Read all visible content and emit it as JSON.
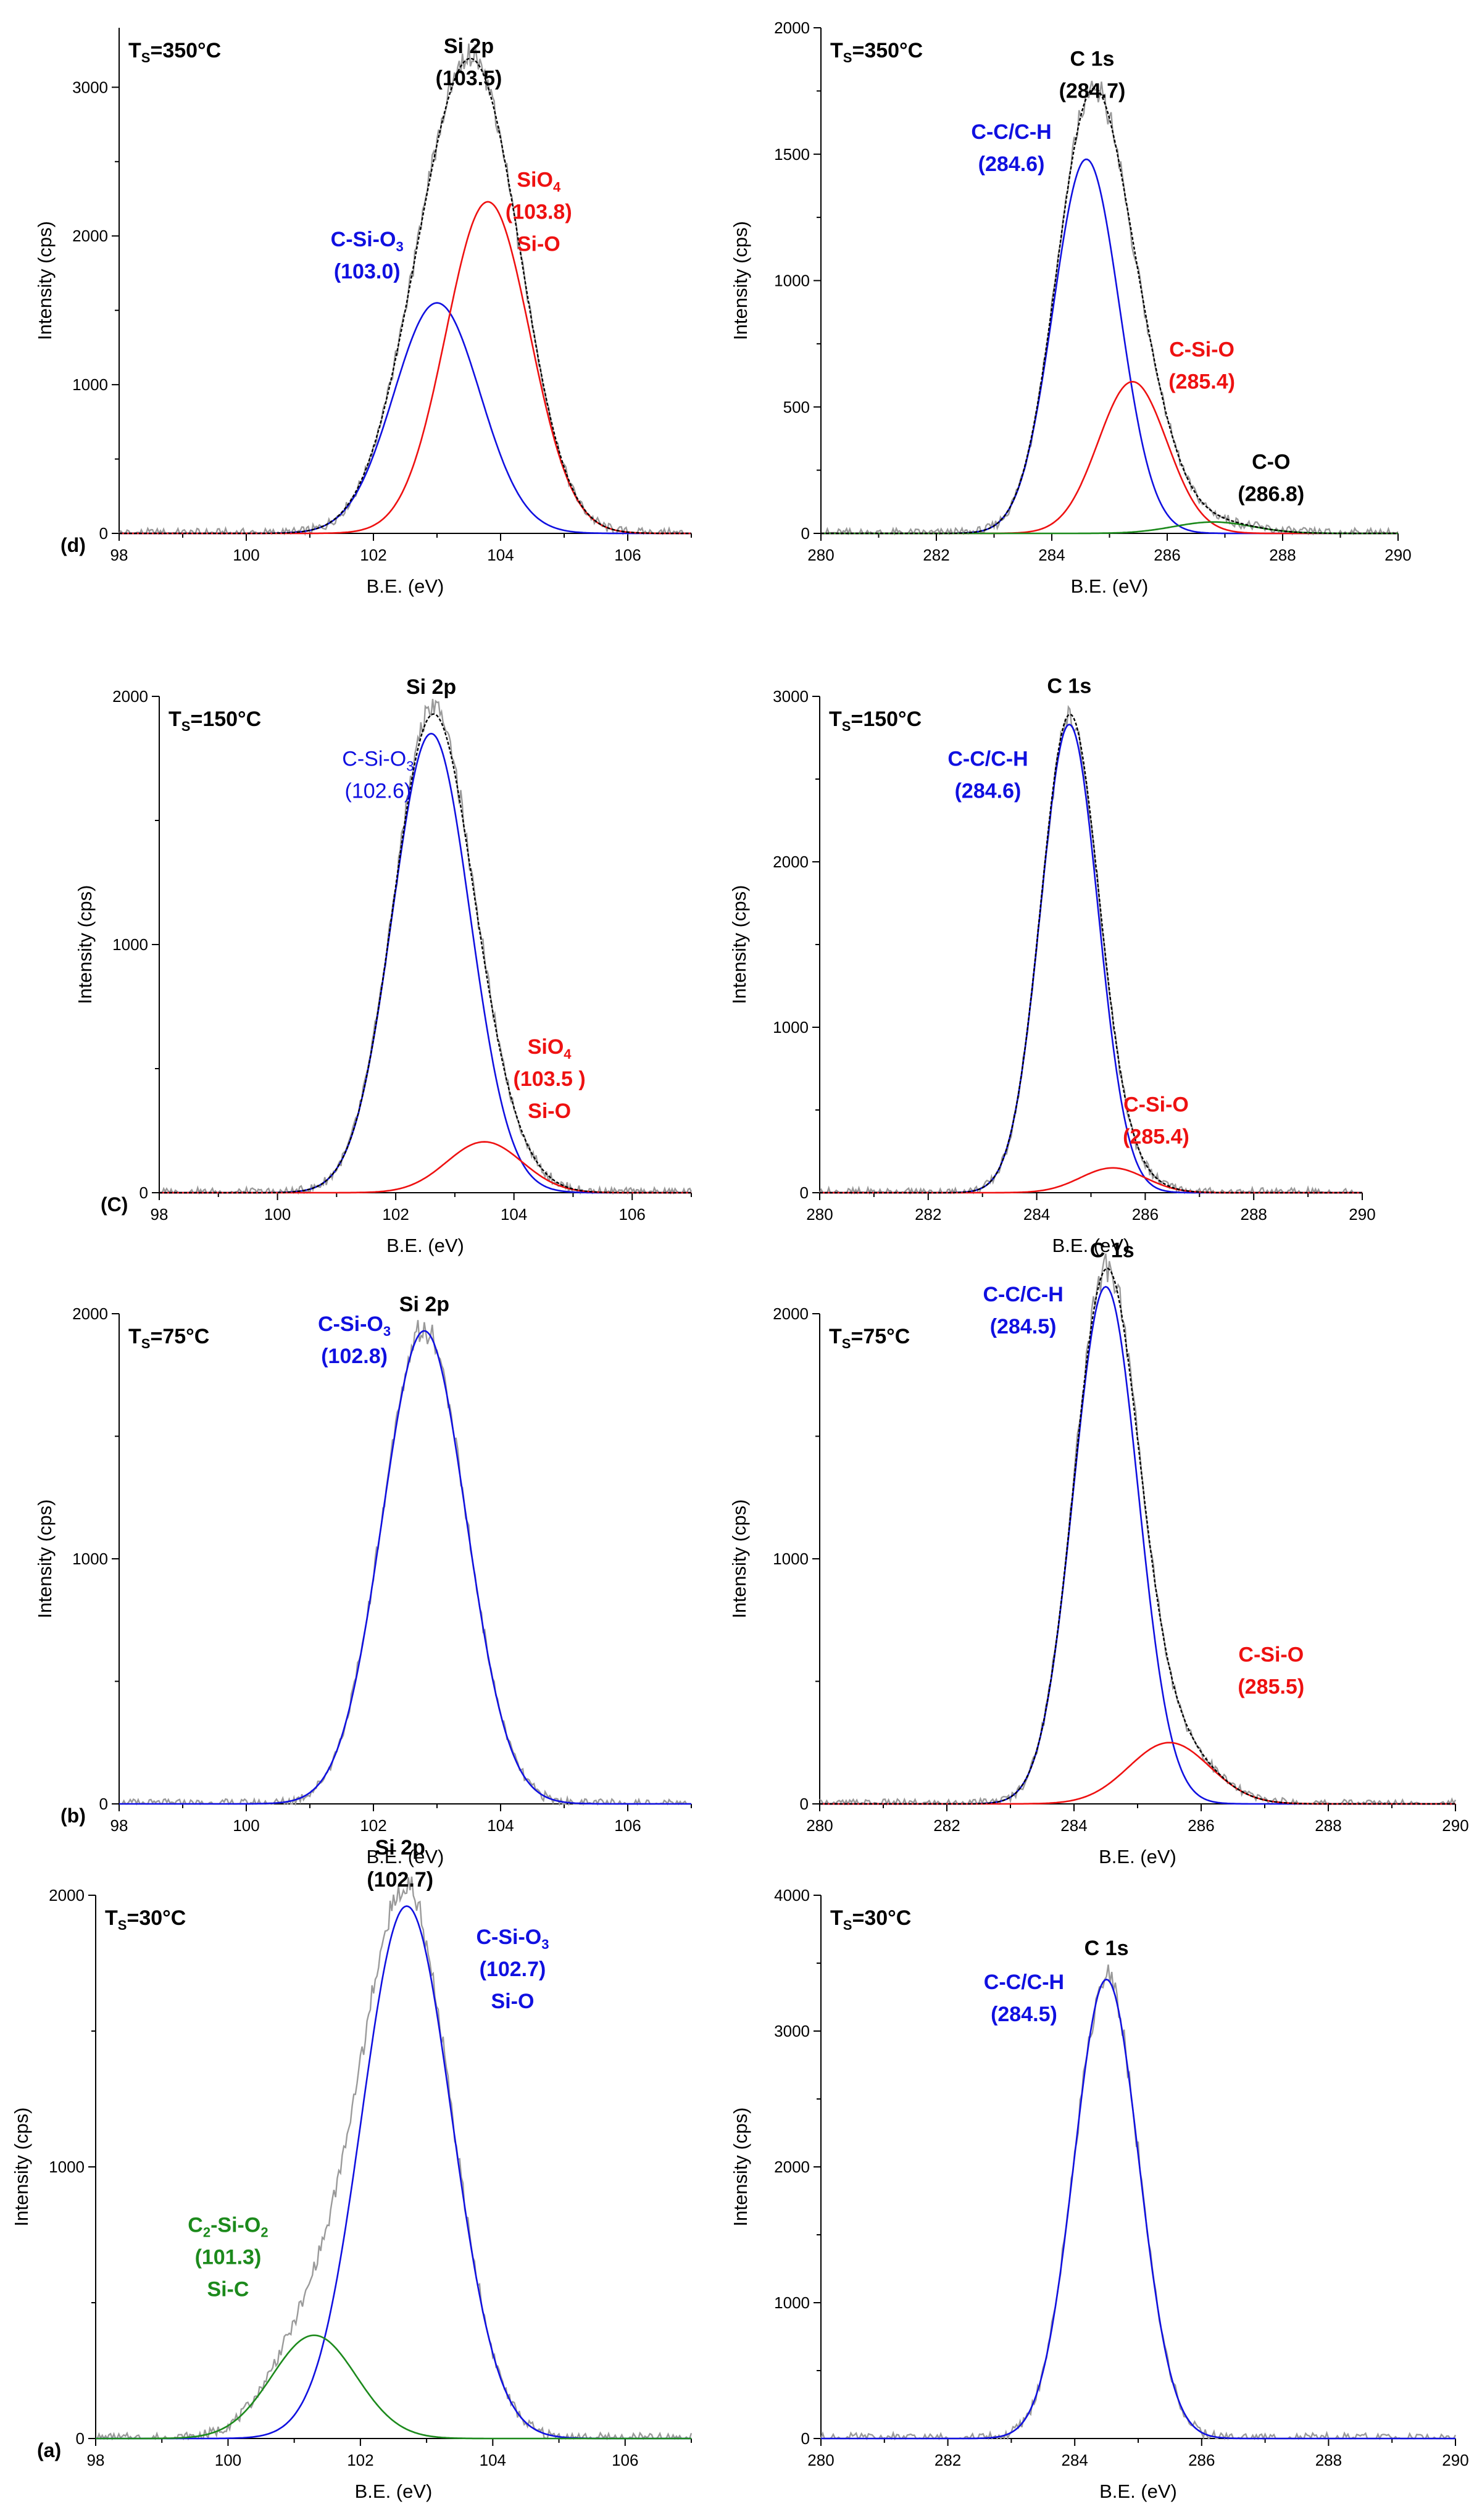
{
  "figure": {
    "colors": {
      "raw": "#9a9a9a",
      "envelope": "#000000",
      "blue": "#1010e0",
      "red": "#ee1111",
      "green": "#1c8a1c",
      "black": "#000000"
    }
  },
  "chart_data": [
    {
      "id": "d-si2p",
      "type": "line",
      "panel_label": "(d)",
      "temperature": "T",
      "temperature_sub": "S",
      "temperature_rest": "=350°C",
      "xlabel": "B.E. (eV)",
      "ylabel": "Intensity (cps)",
      "xlim": [
        98,
        107
      ],
      "ylim": [
        0,
        3400
      ],
      "xticks": [
        98,
        100,
        102,
        104,
        106
      ],
      "yticks": [
        0,
        1000,
        2000,
        3000
      ],
      "components": [
        {
          "name": "C-Si-O3",
          "center": 103.0,
          "amplitude": 1550,
          "fwhm": 1.6,
          "color": "blue"
        },
        {
          "name": "SiO4 / Si-O",
          "center": 103.8,
          "amplitude": 2230,
          "fwhm": 1.55,
          "color": "red"
        }
      ],
      "envelope": true,
      "raw_peak": 3200,
      "annotations": [
        {
          "lines": [
            "Si 2p",
            "(103.5)"
          ],
          "color": "black",
          "x": 103.5,
          "y": 3230
        },
        {
          "lines": [
            "C-Si-O|3",
            "(103.0)"
          ],
          "color": "blue",
          "x": 101.9,
          "y": 1930
        },
        {
          "lines": [
            "SiO|4",
            "(103.8)",
            "Si-O"
          ],
          "color": "red",
          "x": 104.6,
          "y": 2330
        }
      ]
    },
    {
      "id": "d-c1s",
      "type": "line",
      "panel_label": "",
      "temperature": "T",
      "temperature_sub": "S",
      "temperature_rest": "=350°C",
      "xlabel": "B.E. (eV)",
      "ylabel": "Intensity (cps)",
      "xlim": [
        280,
        290
      ],
      "ylim": [
        0,
        2000
      ],
      "xticks": [
        280,
        282,
        284,
        286,
        288,
        290
      ],
      "yticks": [
        0,
        500,
        1000,
        1500,
        2000
      ],
      "components": [
        {
          "name": "C-C/C-H",
          "center": 284.6,
          "amplitude": 1480,
          "fwhm": 1.35,
          "color": "blue"
        },
        {
          "name": "C-Si-O",
          "center": 285.4,
          "amplitude": 600,
          "fwhm": 1.4,
          "color": "red"
        },
        {
          "name": "C-O",
          "center": 286.8,
          "amplitude": 45,
          "fwhm": 1.6,
          "color": "green"
        }
      ],
      "envelope": true,
      "raw_peak": 1760,
      "annotations": [
        {
          "lines": [
            "C 1s",
            "(284.7)"
          ],
          "color": "black",
          "x": 284.7,
          "y": 1850
        },
        {
          "lines": [
            "C-C/C-H",
            "(284.6)"
          ],
          "color": "blue",
          "x": 283.3,
          "y": 1560
        },
        {
          "lines": [
            "C-Si-O",
            "(285.4)"
          ],
          "color": "red",
          "x": 286.6,
          "y": 700
        },
        {
          "lines": [
            "C-O",
            "(286.8)"
          ],
          "color": "black",
          "x": 287.8,
          "y": 255
        }
      ]
    },
    {
      "id": "c-si2p",
      "type": "line",
      "panel_label": "(C)",
      "temperature": "T",
      "temperature_sub": "S",
      "temperature_rest": "=150°C",
      "xlabel": "B.E. (eV)",
      "ylabel": "Intensity (cps)",
      "xlim": [
        98,
        107
      ],
      "ylim": [
        0,
        2000
      ],
      "xticks": [
        98,
        100,
        102,
        104,
        106
      ],
      "yticks": [
        0,
        1000,
        2000
      ],
      "components": [
        {
          "name": "C-Si-O3",
          "center": 102.6,
          "amplitude": 1850,
          "fwhm": 1.55,
          "color": "blue"
        },
        {
          "name": "SiO4 / Si-O",
          "center": 103.5,
          "amplitude": 205,
          "fwhm": 1.5,
          "color": "red"
        }
      ],
      "envelope": true,
      "raw_peak": 1950,
      "annotations": [
        {
          "lines": [
            "Si 2p"
          ],
          "color": "black",
          "x": 102.6,
          "y": 2010
        },
        {
          "lines": [
            "C-Si-O|3",
            "(102.6)"
          ],
          "color": "blue",
          "plain": true,
          "x": 101.7,
          "y": 1720
        },
        {
          "lines": [
            "SiO|4",
            "(103.5 )",
            "Si-O"
          ],
          "color": "red",
          "x": 104.6,
          "y": 560
        }
      ]
    },
    {
      "id": "c-c1s",
      "type": "line",
      "panel_label": "",
      "temperature": "T",
      "temperature_sub": "S",
      "temperature_rest": "=150°C",
      "xlabel": "B.E. (eV)",
      "ylabel": "Intensity (cps)",
      "xlim": [
        280,
        290
      ],
      "ylim": [
        0,
        3000
      ],
      "xticks": [
        280,
        282,
        284,
        286,
        288,
        290
      ],
      "yticks": [
        0,
        1000,
        2000,
        3000
      ],
      "components": [
        {
          "name": "C-C/C-H",
          "center": 284.6,
          "amplitude": 2830,
          "fwhm": 1.25,
          "color": "blue"
        },
        {
          "name": "C-Si-O",
          "center": 285.4,
          "amplitude": 150,
          "fwhm": 1.4,
          "color": "red"
        }
      ],
      "envelope": true,
      "raw_peak": 2870,
      "annotations": [
        {
          "lines": [
            "C 1s"
          ],
          "color": "black",
          "x": 284.6,
          "y": 3020
        },
        {
          "lines": [
            "C-C/C-H",
            "(284.6)"
          ],
          "color": "blue",
          "x": 283.1,
          "y": 2580
        },
        {
          "lines": [
            "C-Si-O",
            "(285.4)"
          ],
          "color": "red",
          "x": 286.2,
          "y": 490
        }
      ]
    },
    {
      "id": "b-si2p",
      "type": "line",
      "panel_label": "(b)",
      "temperature": "T",
      "temperature_sub": "S",
      "temperature_rest": "=75°C",
      "xlabel": "B.E. (eV)",
      "ylabel": "Intensity (cps)",
      "xlim": [
        98,
        107
      ],
      "ylim": [
        0,
        2000
      ],
      "xticks": [
        98,
        100,
        102,
        104,
        106
      ],
      "yticks": [
        0,
        1000,
        2000
      ],
      "components": [
        {
          "name": "C-Si-O3",
          "center": 102.8,
          "amplitude": 1930,
          "fwhm": 1.55,
          "color": "blue"
        }
      ],
      "envelope": false,
      "raw_peak": 1950,
      "annotations": [
        {
          "lines": [
            "Si 2p"
          ],
          "color": "black",
          "x": 102.8,
          "y": 2010
        },
        {
          "lines": [
            "C-Si-O|3",
            "(102.8)"
          ],
          "color": "blue",
          "x": 101.7,
          "y": 1930
        }
      ]
    },
    {
      "id": "b-c1s",
      "type": "line",
      "panel_label": "",
      "temperature": "T",
      "temperature_sub": "S",
      "temperature_rest": "=75°C",
      "xlabel": "B.E. (eV)",
      "ylabel": "Intensity (cps)",
      "xlim": [
        280,
        290
      ],
      "ylim": [
        0,
        2000
      ],
      "xticks": [
        280,
        282,
        284,
        286,
        288,
        290
      ],
      "yticks": [
        0,
        1000,
        2000
      ],
      "components": [
        {
          "name": "C-C/C-H",
          "center": 284.5,
          "amplitude": 2110,
          "fwhm": 1.2,
          "color": "blue"
        },
        {
          "name": "C-Si-O",
          "center": 285.5,
          "amplitude": 250,
          "fwhm": 1.5,
          "color": "red"
        }
      ],
      "envelope": true,
      "raw_peak": 2200,
      "annotations": [
        {
          "lines": [
            "C 1s"
          ],
          "color": "black",
          "x": 284.6,
          "y": 2230
        },
        {
          "lines": [
            "C-C/C-H",
            "(284.5)"
          ],
          "color": "blue",
          "x": 283.2,
          "y": 2050
        },
        {
          "lines": [
            "C-Si-O",
            "(285.5)"
          ],
          "color": "red",
          "x": 287.1,
          "y": 580
        }
      ]
    },
    {
      "id": "a-si2p",
      "type": "line",
      "panel_label": "(a)",
      "temperature": "T",
      "temperature_sub": "S",
      "temperature_rest": "=30°C",
      "xlabel": "B.E. (eV)",
      "ylabel": "Intensity (cps)",
      "xlim": [
        98,
        107
      ],
      "ylim": [
        0,
        2000
      ],
      "xticks": [
        98,
        100,
        102,
        104,
        106
      ],
      "yticks": [
        0,
        1000,
        2000
      ],
      "components": [
        {
          "name": "C-Si-O3 / Si-O",
          "center": 102.7,
          "amplitude": 1960,
          "fwhm": 1.6,
          "color": "blue"
        },
        {
          "name": "C2-Si-O2 / Si-C",
          "center": 101.3,
          "amplitude": 380,
          "fwhm": 1.5,
          "color": "green"
        }
      ],
      "envelope": false,
      "raw_peak": 2030,
      "annotations": [
        {
          "lines": [
            "Si 2p",
            "(102.7)"
          ],
          "color": "black",
          "x": 102.6,
          "y": 2150
        },
        {
          "lines": [
            "C-Si-O|3",
            "(102.7)",
            "Si-O"
          ],
          "color": "blue",
          "x": 104.3,
          "y": 1820
        },
        {
          "lines": [
            "C|2|-Si-O|2",
            "(101.3)",
            "Si-C"
          ],
          "color": "green",
          "x": 100.0,
          "y": 760
        }
      ]
    },
    {
      "id": "a-c1s",
      "type": "line",
      "panel_label": "",
      "temperature": "T",
      "temperature_sub": "S",
      "temperature_rest": "=30°C",
      "xlabel": "B.E. (eV)",
      "ylabel": "Intensity (cps)",
      "xlim": [
        280,
        290
      ],
      "ylim": [
        0,
        4000
      ],
      "xticks": [
        280,
        282,
        284,
        286,
        288,
        290
      ],
      "yticks": [
        0,
        1000,
        2000,
        3000,
        4000
      ],
      "components": [
        {
          "name": "C-C/C-H",
          "center": 284.5,
          "amplitude": 3380,
          "fwhm": 1.2,
          "color": "blue"
        }
      ],
      "envelope": false,
      "raw_peak": 3400,
      "annotations": [
        {
          "lines": [
            "C 1s"
          ],
          "color": "black",
          "x": 284.5,
          "y": 3560
        },
        {
          "lines": [
            "C-C/C-H",
            "(284.5)"
          ],
          "color": "blue",
          "x": 283.2,
          "y": 3310
        }
      ]
    }
  ]
}
